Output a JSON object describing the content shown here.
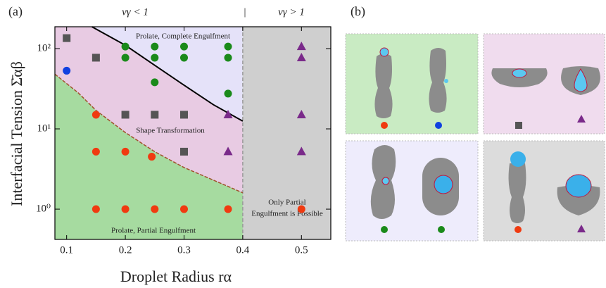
{
  "chart_data": {
    "type": "scatter",
    "panel_a": "(a)",
    "panel_b": "(b)",
    "top_labels": [
      "vγ < 1",
      "|",
      "vγ > 1"
    ],
    "x_label": "Droplet Radius  rα",
    "y_label": "Interfacial Tension Σ̄αβ",
    "xlim": [
      0.08,
      0.55
    ],
    "ylim": [
      0.42,
      187
    ],
    "log_y": true,
    "xticks": [
      0.1,
      0.2,
      0.3,
      0.4,
      0.5
    ],
    "yticks": [
      {
        "value": 1,
        "label": "10⁰"
      },
      {
        "value": 10,
        "label": "10¹"
      },
      {
        "value": 100,
        "label": "10²"
      }
    ],
    "boundary_x": 0.4,
    "regions": [
      {
        "lines": [
          "Prolate, Complete Engulfment"
        ],
        "color": "#e5e2f9"
      },
      {
        "lines": [
          "Shape Transformation"
        ],
        "color": "#e8cbe3"
      },
      {
        "lines": [
          "Prolate, Partial Engulfment"
        ],
        "color": "#a6dba0"
      },
      {
        "lines": [
          "Only Partial",
          "Engulfment is Possible"
        ],
        "color": "#cfcfcf"
      }
    ],
    "curves": [
      {
        "color": "#000000",
        "dashed": false,
        "x": [
          0.143,
          0.2,
          0.25,
          0.3,
          0.35,
          0.4
        ],
        "values": [
          187,
          110,
          62,
          35,
          20,
          12.5
        ]
      },
      {
        "color": "#a0522d",
        "dashed": true,
        "x": [
          0.08,
          0.12,
          0.15,
          0.2,
          0.25,
          0.3,
          0.35,
          0.4
        ],
        "values": [
          48,
          28,
          17,
          9,
          5.2,
          3.3,
          2.3,
          1.6
        ]
      }
    ],
    "series": [
      {
        "marker": "square",
        "color": "#555555",
        "x": [
          0.1,
          0.15,
          0.2,
          0.25,
          0.3,
          0.3
        ],
        "values": [
          135,
          77,
          15,
          15,
          15,
          5.2
        ]
      },
      {
        "marker": "circle",
        "color": "#1040e0",
        "x": [
          0.1
        ],
        "values": [
          53
        ]
      },
      {
        "marker": "circle",
        "color": "#1a8a1a",
        "x": [
          0.2,
          0.25,
          0.3,
          0.375,
          0.2,
          0.25,
          0.3,
          0.375,
          0.25,
          0.375
        ],
        "values": [
          106,
          106,
          106,
          106,
          77,
          77,
          77,
          77,
          38,
          27.5
        ]
      },
      {
        "marker": "circle",
        "color": "#f03a10",
        "x": [
          0.15,
          0.15,
          0.2,
          0.245,
          0.15,
          0.2,
          0.25,
          0.3,
          0.375,
          0.5
        ],
        "values": [
          15,
          5.2,
          5.2,
          4.5,
          1,
          1,
          1,
          1,
          1,
          1
        ]
      },
      {
        "marker": "triangle",
        "color": "#7a2a8a",
        "x": [
          0.5,
          0.5,
          0.5,
          0.5,
          0.375,
          0.375
        ],
        "values": [
          106,
          77,
          15,
          5.2,
          15,
          5.2
        ]
      }
    ]
  }
}
